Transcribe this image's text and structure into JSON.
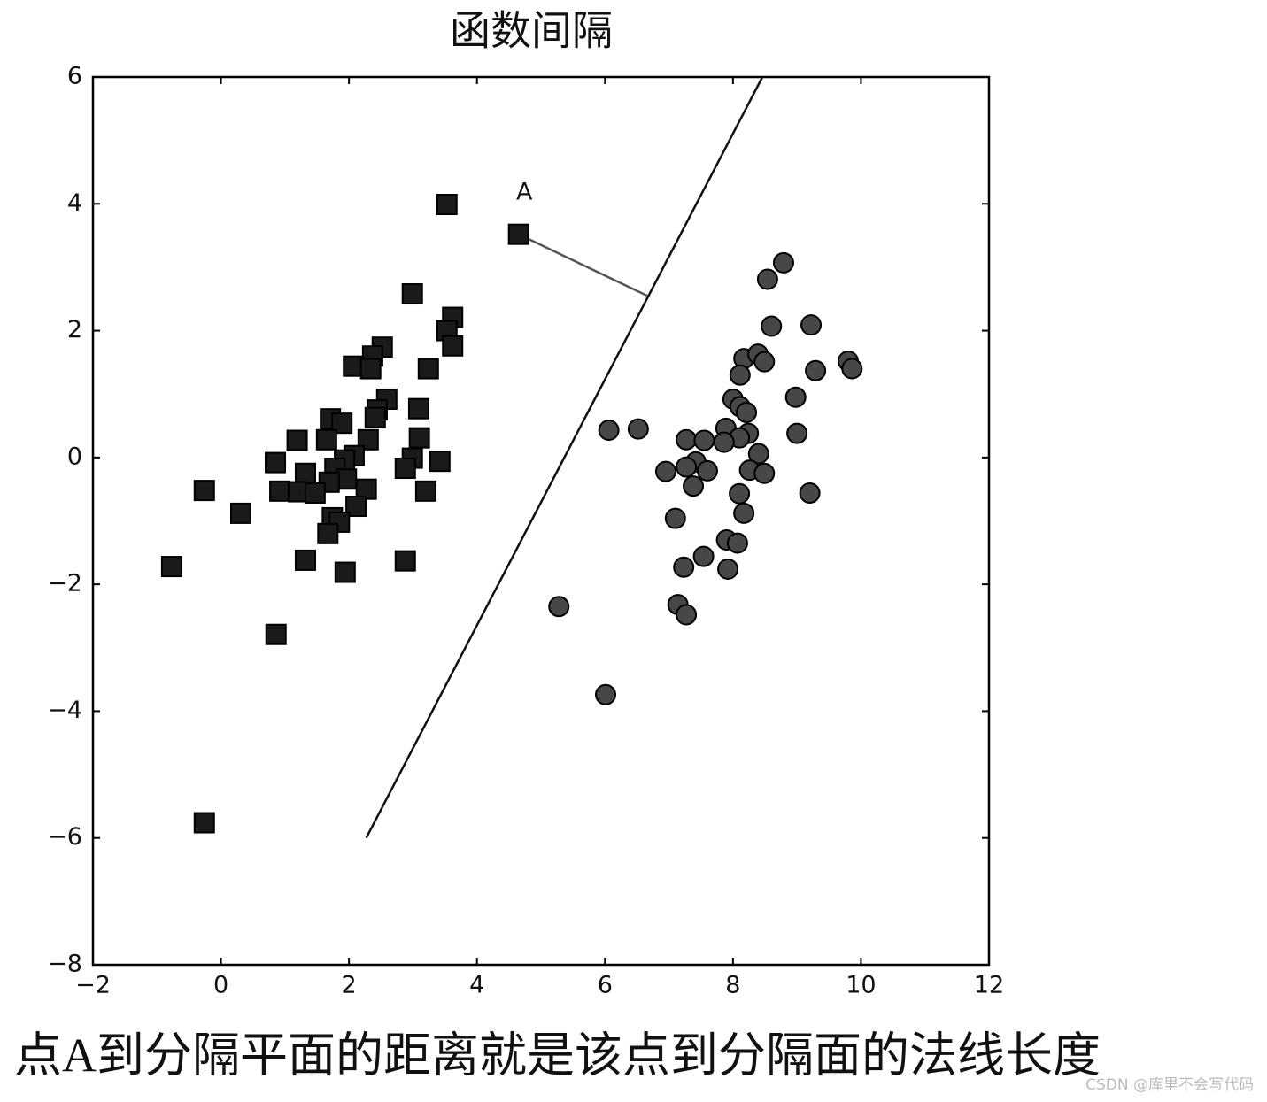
{
  "chart_data": {
    "type": "scatter",
    "title": "函数间隔",
    "xlim": [
      -2,
      12
    ],
    "ylim": [
      -8,
      6
    ],
    "xticks": [
      {
        "value": -2,
        "label": "−2"
      },
      0,
      2,
      4,
      6,
      8,
      10,
      12
    ],
    "yticks": [
      {
        "value": -8,
        "label": "−8"
      },
      {
        "value": -6,
        "label": "−6"
      },
      {
        "value": -4,
        "label": "−4"
      },
      {
        "value": -2,
        "label": "−2"
      },
      0,
      2,
      4,
      6
    ],
    "grid": false,
    "series": [
      {
        "marker": "square",
        "color": "#1a1a1a",
        "x": [
          3.53,
          4.65,
          2.99,
          3.62,
          3.53,
          3.62,
          2.52,
          2.37,
          2.07,
          2.34,
          3.24,
          2.59,
          2.44,
          3.09,
          1.71,
          1.89,
          2.41,
          3.1,
          1.19,
          1.65,
          2.3,
          2.08,
          2.99,
          3.42,
          0.85,
          1.93,
          1.78,
          2.88,
          1.32,
          1.96,
          1.69,
          -0.26,
          0.92,
          1.21,
          1.47,
          2.27,
          3.2,
          2.11,
          0.31,
          1.74,
          1.85,
          1.67,
          1.32,
          2.88,
          -0.77,
          1.94,
          0.86,
          -0.26
        ],
        "y": [
          3.99,
          3.52,
          2.58,
          2.21,
          2.0,
          1.76,
          1.74,
          1.6,
          1.44,
          1.4,
          1.4,
          0.92,
          0.75,
          0.77,
          0.61,
          0.54,
          0.63,
          0.31,
          0.27,
          0.28,
          0.28,
          0.03,
          -0.01,
          -0.06,
          -0.08,
          -0.04,
          -0.17,
          -0.17,
          -0.25,
          -0.34,
          -0.39,
          -0.52,
          -0.53,
          -0.54,
          -0.56,
          -0.5,
          -0.53,
          -0.77,
          -0.88,
          -0.95,
          -1.02,
          -1.2,
          -1.62,
          -1.63,
          -1.72,
          -1.81,
          -2.79,
          -5.76
        ]
      },
      {
        "marker": "circle",
        "color": "#474747",
        "x": [
          8.79,
          8.54,
          9.22,
          8.6,
          8.17,
          8.39,
          8.49,
          9.8,
          9.86,
          9.29,
          8.11,
          8.0,
          8.98,
          8.11,
          8.21,
          6.06,
          6.52,
          7.89,
          8.24,
          9.0,
          7.27,
          7.55,
          8.1,
          7.86,
          8.4,
          7.42,
          7.27,
          7.6,
          6.95,
          8.26,
          8.49,
          7.38,
          9.2,
          8.1,
          8.17,
          7.1,
          7.9,
          8.07,
          7.54,
          7.23,
          7.92,
          5.28,
          7.14,
          7.27,
          6.01
        ],
        "y": [
          3.07,
          2.81,
          2.09,
          2.07,
          1.56,
          1.63,
          1.51,
          1.52,
          1.4,
          1.37,
          1.3,
          0.92,
          0.95,
          0.8,
          0.71,
          0.43,
          0.45,
          0.46,
          0.38,
          0.38,
          0.28,
          0.27,
          0.31,
          0.24,
          0.06,
          -0.07,
          -0.15,
          -0.21,
          -0.22,
          -0.2,
          -0.25,
          -0.45,
          -0.56,
          -0.57,
          -0.88,
          -0.96,
          -1.3,
          -1.35,
          -1.56,
          -1.73,
          -1.76,
          -2.35,
          -2.32,
          -2.48,
          -3.74
        ]
      }
    ],
    "lines": [
      {
        "x": [
          2.27,
          8.46
        ],
        "y": [
          -6,
          6
        ],
        "color": "#111111"
      },
      {
        "x": [
          4.65,
          6.66
        ],
        "y": [
          3.52,
          2.55
        ],
        "color": "#555555"
      }
    ],
    "annotations": [
      {
        "text": "A",
        "x": 4.74,
        "y": 4.17
      }
    ]
  },
  "caption": "点A到分隔平面的距离就是该点到分隔面的法线长度",
  "watermark": "CSDN @库里不会写代码"
}
